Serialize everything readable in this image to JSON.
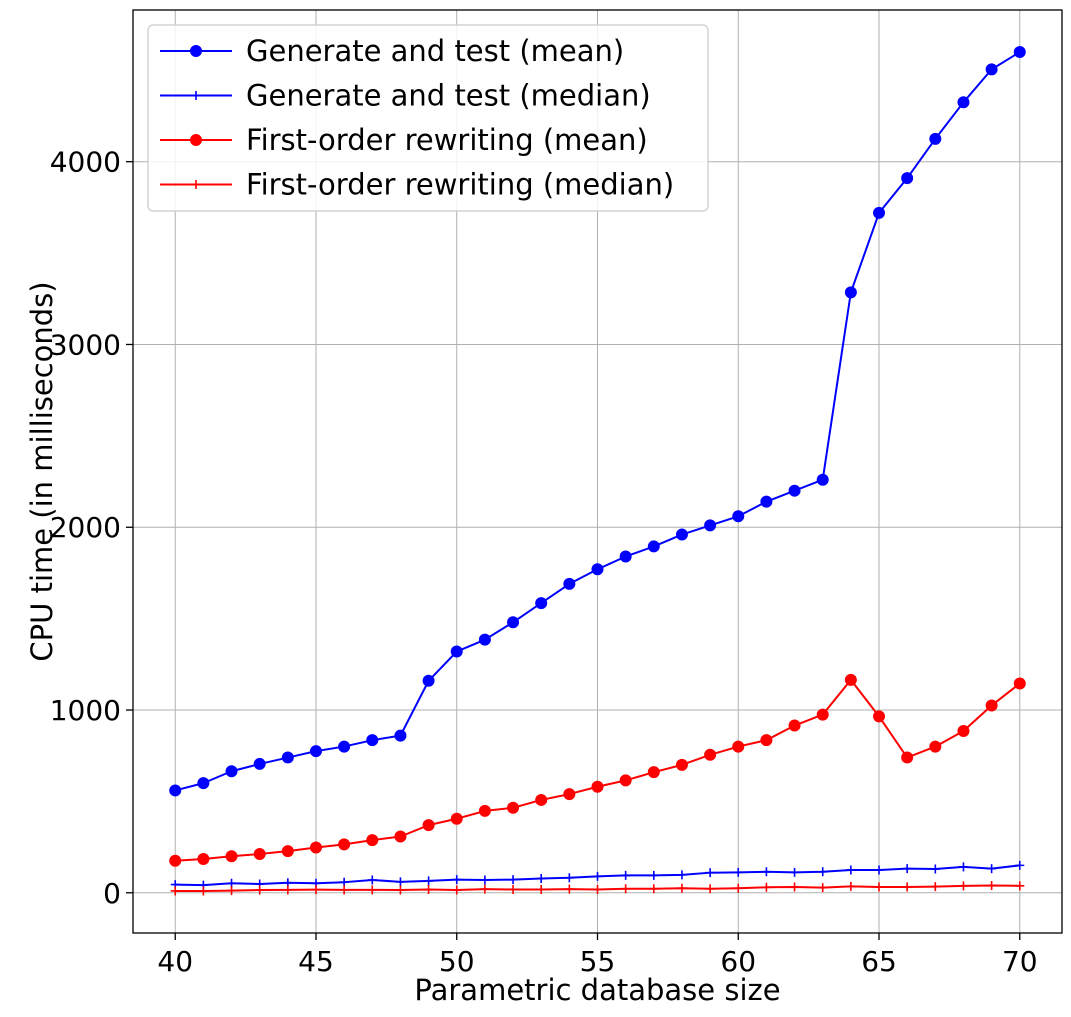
{
  "chart_data": {
    "type": "line",
    "title": "",
    "xlabel": "Parametric database size",
    "ylabel": "CPU time (in milliseconds)",
    "xlim": [
      38.5,
      71.5
    ],
    "ylim": [
      -220,
      4830
    ],
    "xticks": [
      40,
      45,
      50,
      55,
      60,
      65,
      70
    ],
    "yticks": [
      0,
      1000,
      2000,
      3000,
      4000
    ],
    "grid": true,
    "legend_position": "top-left",
    "x": [
      40,
      41,
      42,
      43,
      44,
      45,
      46,
      47,
      48,
      49,
      50,
      51,
      52,
      53,
      54,
      55,
      56,
      57,
      58,
      59,
      60,
      61,
      62,
      63,
      64,
      65,
      66,
      67,
      68,
      69,
      70
    ],
    "series": [
      {
        "name": "Generate and test (mean)",
        "color": "#0000ff",
        "marker": "circle",
        "values": [
          560,
          600,
          665,
          705,
          740,
          775,
          800,
          835,
          860,
          1160,
          1320,
          1385,
          1480,
          1585,
          1690,
          1770,
          1840,
          1895,
          1960,
          2010,
          2060,
          2140,
          2200,
          2260,
          3285,
          3720,
          3910,
          4125,
          4325,
          4505,
          4600
        ]
      },
      {
        "name": "Generate and test (median)",
        "color": "#0000ff",
        "marker": "plus",
        "values": [
          45,
          42,
          52,
          48,
          55,
          52,
          58,
          70,
          60,
          65,
          72,
          70,
          72,
          78,
          82,
          90,
          95,
          95,
          98,
          110,
          112,
          115,
          112,
          115,
          125,
          125,
          132,
          130,
          142,
          132,
          150
        ]
      },
      {
        "name": "First-order rewriting (mean)",
        "color": "#ff0000",
        "marker": "circle",
        "values": [
          175,
          185,
          200,
          212,
          228,
          248,
          265,
          288,
          308,
          370,
          405,
          448,
          465,
          508,
          540,
          580,
          615,
          660,
          700,
          755,
          800,
          835,
          915,
          975,
          1165,
          965,
          740,
          800,
          885,
          1025,
          1145
        ]
      },
      {
        "name": "First-order rewriting (median)",
        "color": "#ff0000",
        "marker": "plus",
        "values": [
          10,
          10,
          12,
          15,
          16,
          17,
          16,
          16,
          15,
          18,
          15,
          20,
          18,
          18,
          20,
          18,
          22,
          22,
          25,
          22,
          25,
          30,
          32,
          28,
          35,
          32,
          32,
          34,
          38,
          40,
          38
        ]
      }
    ]
  }
}
